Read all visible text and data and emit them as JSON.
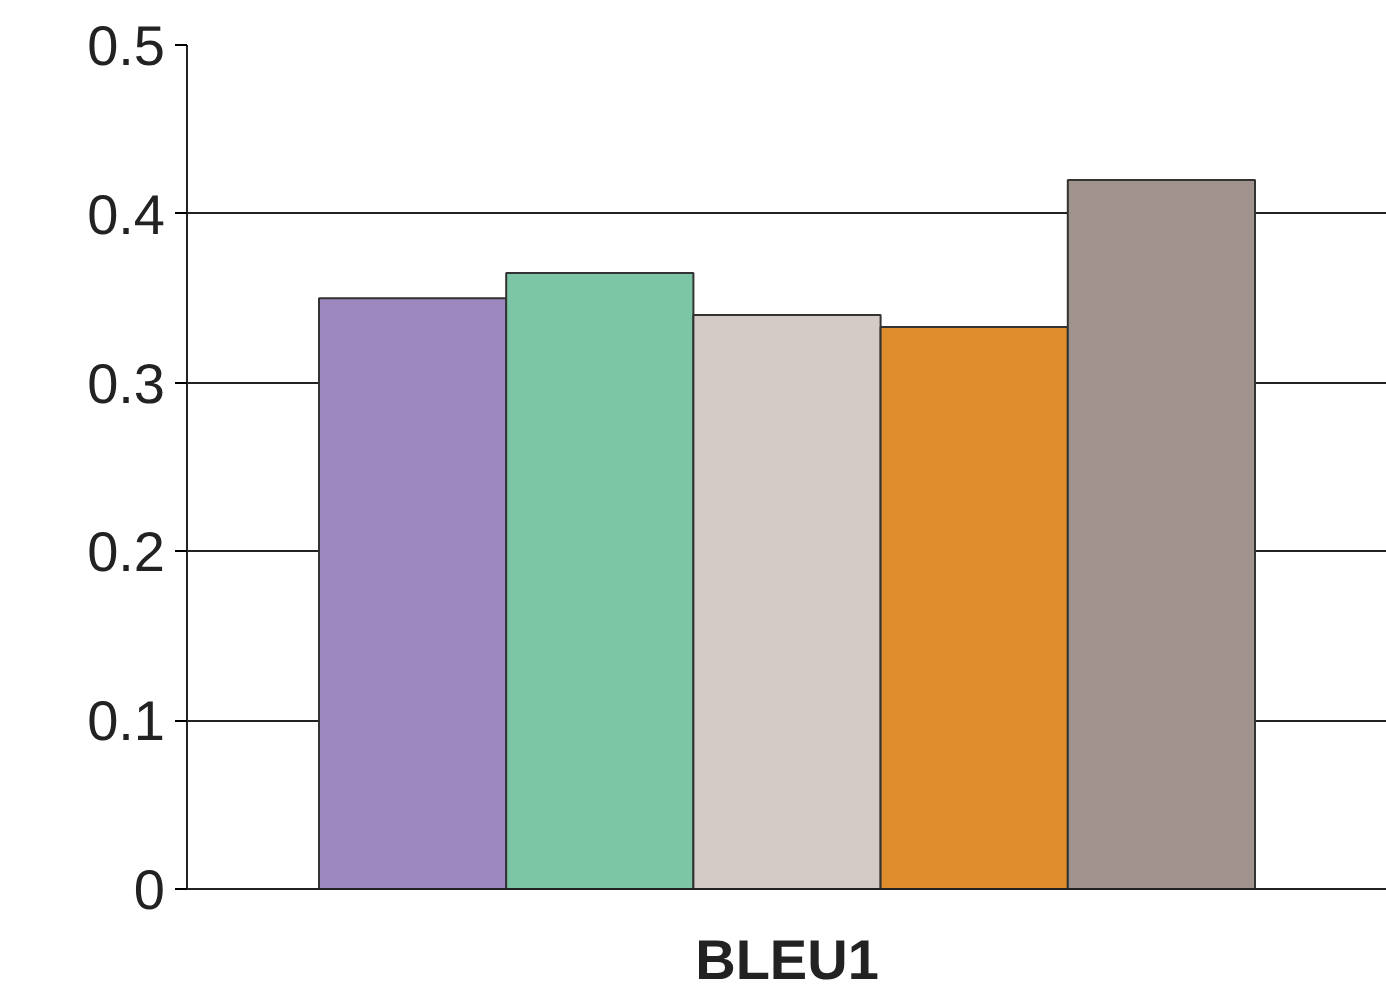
{
  "chart_data": {
    "type": "bar",
    "categories": [
      "BLEU1"
    ],
    "series": [
      {
        "color": "#9d89c0",
        "values": [
          0.35
        ]
      },
      {
        "color": "#7cc6a6",
        "values": [
          0.365
        ]
      },
      {
        "color": "#d4cbc7",
        "values": [
          0.34
        ]
      },
      {
        "color": "#e08e2c",
        "values": [
          0.333
        ]
      },
      {
        "color": "#a0928d",
        "values": [
          0.42
        ]
      }
    ],
    "ylim": [
      0,
      0.5
    ],
    "yticks": [
      0,
      0.1,
      0.2,
      0.3,
      0.4,
      0.5
    ],
    "grid": "y"
  }
}
